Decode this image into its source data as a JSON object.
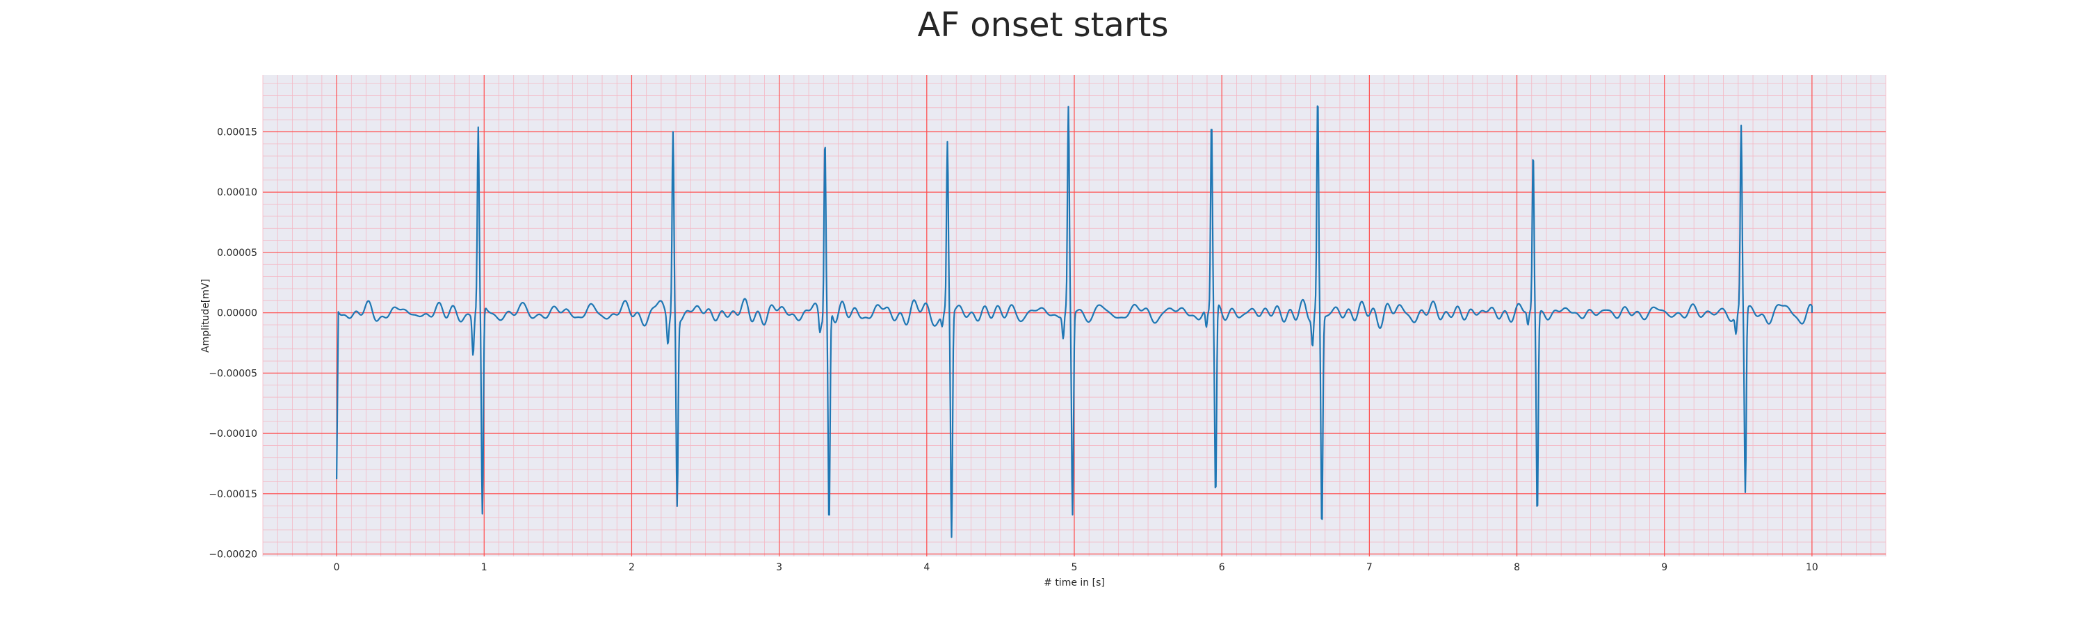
{
  "chart_data": {
    "type": "line",
    "title": "AF onset starts",
    "xlabel": "# time in [s]",
    "ylabel": "Amplitude[mV]",
    "xlim": [
      -0.5,
      10.5
    ],
    "ylim": [
      -0.000202,
      0.000197
    ],
    "x_ticks": [
      0,
      1,
      2,
      3,
      4,
      5,
      6,
      7,
      8,
      9,
      10
    ],
    "x_tick_labels": [
      "0",
      "1",
      "2",
      "3",
      "4",
      "5",
      "6",
      "7",
      "8",
      "9",
      "10"
    ],
    "y_ticks": [
      0.00015,
      0.0001,
      5e-05,
      0.0,
      -5e-05,
      -0.0001,
      -0.00015,
      -0.0002
    ],
    "y_tick_labels": [
      "0.00015",
      "0.00010",
      "0.00005",
      "0.00000",
      "−0.00005",
      "−0.00010",
      "−0.00015",
      "−0.00020"
    ],
    "grid": true,
    "minor_grid": true,
    "colors": {
      "background": "#eaeaf2",
      "major_grid": "#ff4d4d",
      "minor_grid": "#f4b8c4",
      "line": "#1f77b4"
    },
    "series": [
      {
        "beats": [
          {
            "t": 0.96,
            "peak": 0.000149,
            "trough": -0.000174,
            "pre": -3.3e-05
          },
          {
            "t": 2.28,
            "peak": 0.000152,
            "trough": -0.000156,
            "pre": -2.2e-05
          },
          {
            "t": 3.31,
            "peak": 0.000149,
            "trough": -0.000181,
            "pre": -1.3e-05
          },
          {
            "t": 4.14,
            "peak": 0.000138,
            "trough": -0.000188,
            "pre": -1e-05
          },
          {
            "t": 4.96,
            "peak": 0.000167,
            "trough": -0.000169,
            "pre": -2e-05
          },
          {
            "t": 5.93,
            "peak": 0.000161,
            "trough": -0.000157,
            "pre": -1.5e-05
          },
          {
            "t": 6.65,
            "peak": 0.000178,
            "trough": -0.000177,
            "pre": -2.5e-05
          },
          {
            "t": 8.11,
            "peak": 0.000135,
            "trough": -0.000166,
            "pre": -1.2e-05
          },
          {
            "t": 9.52,
            "peak": 0.000152,
            "trough": -0.000152,
            "pre": -1.7e-05
          }
        ],
        "start_value": -0.000138,
        "end_value": 0.0,
        "baseline_noise_amplitude": 1.2e-05,
        "x_end": 10.0
      }
    ]
  }
}
